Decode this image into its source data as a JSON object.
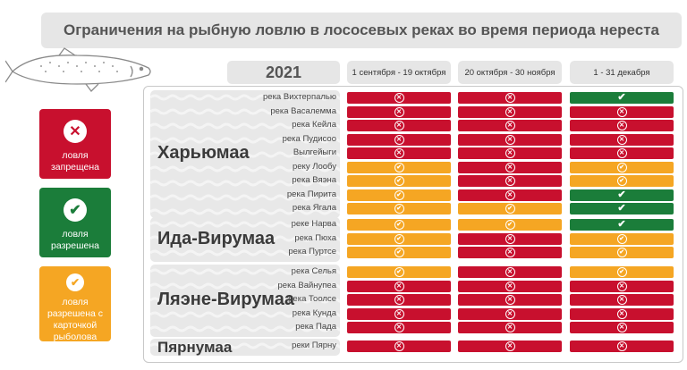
{
  "title": "Ограничения на рыбную ловлю в лососевых реках во время периода нереста",
  "year": "2021",
  "columns": [
    "1 сентября - 19 октября",
    "20 октября - 30 ноября",
    "1 - 31 декабря"
  ],
  "legend": [
    {
      "status": "red",
      "label": "ловля запрещена",
      "icon": "cross-icon"
    },
    {
      "status": "green",
      "label": "ловля разрешена",
      "icon": "check-icon"
    },
    {
      "status": "orange",
      "label": "ловля разрешена с карточкой рыболова",
      "icon": "check-circle-icon"
    }
  ],
  "colors": {
    "red": "#c8102e",
    "green": "#1b7d3a",
    "orange": "#f5a623"
  },
  "regions": [
    {
      "name": "Харьюмаа",
      "rivers": [
        {
          "name": "река Вихтерпалью",
          "status": [
            "red",
            "red",
            "green"
          ]
        },
        {
          "name": "река Васалемма",
          "status": [
            "red",
            "red",
            "red"
          ]
        },
        {
          "name": "река Кейла",
          "status": [
            "red",
            "red",
            "red"
          ]
        },
        {
          "name": "река Пудисоо",
          "status": [
            "red",
            "red",
            "red"
          ]
        },
        {
          "name": "Вылгейыги",
          "status": [
            "red",
            "red",
            "red"
          ]
        },
        {
          "name": "реку Лообу",
          "status": [
            "orange",
            "red",
            "orange"
          ]
        },
        {
          "name": "река Вяэна",
          "status": [
            "orange",
            "red",
            "orange"
          ]
        },
        {
          "name": "река Пирита",
          "status": [
            "orange",
            "red",
            "green"
          ]
        },
        {
          "name": "река Ягала",
          "status": [
            "orange",
            "orange",
            "green"
          ]
        }
      ]
    },
    {
      "name": "Ида-Вирумаа",
      "rivers": [
        {
          "name": "реке Нарва",
          "status": [
            "orange",
            "orange",
            "green"
          ]
        },
        {
          "name": "река Пюха",
          "status": [
            "orange",
            "red",
            "orange"
          ]
        },
        {
          "name": "река Пуртсе",
          "status": [
            "orange",
            "red",
            "orange"
          ]
        }
      ]
    },
    {
      "name": "Ляэне-Вирумаа",
      "rivers": [
        {
          "name": "река Селья",
          "status": [
            "orange",
            "red",
            "orange"
          ]
        },
        {
          "name": "река Вайнупеа",
          "status": [
            "red",
            "red",
            "red"
          ]
        },
        {
          "name": "река Тоолсе",
          "status": [
            "red",
            "red",
            "red"
          ]
        },
        {
          "name": "река Кунда",
          "status": [
            "red",
            "red",
            "red"
          ]
        },
        {
          "name": "река Пада",
          "status": [
            "red",
            "red",
            "red"
          ]
        }
      ]
    },
    {
      "name": "Пярнумаа",
      "rivers": [
        {
          "name": "реки Пярну",
          "status": [
            "red",
            "red",
            "red"
          ]
        }
      ]
    }
  ]
}
